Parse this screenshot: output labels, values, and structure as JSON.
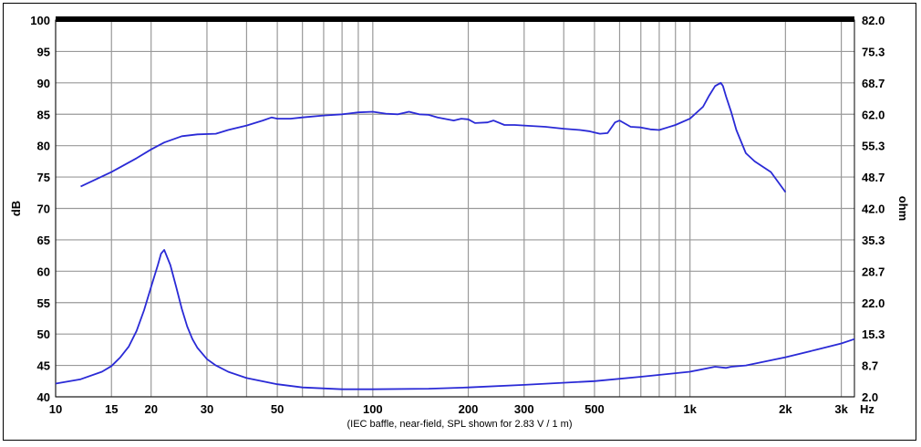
{
  "chart_data": {
    "type": "line",
    "x_scale": "log",
    "xlim": [
      10,
      3300
    ],
    "ylim_left": [
      40,
      100
    ],
    "ylim_right": [
      2.0,
      82.0
    ],
    "ylabel_left": "dB",
    "ylabel_right": "ohm",
    "x_unit": "Hz",
    "note": "(IEC baffle, near-field, SPL shown for 2.83 V / 1 m)",
    "grid": true,
    "x_ticks": [
      {
        "v": 10,
        "label": "10"
      },
      {
        "v": 15,
        "label": "15"
      },
      {
        "v": 20,
        "label": "20"
      },
      {
        "v": 30,
        "label": "30"
      },
      {
        "v": 50,
        "label": "50"
      },
      {
        "v": 100,
        "label": "100"
      },
      {
        "v": 200,
        "label": "200"
      },
      {
        "v": 300,
        "label": "300"
      },
      {
        "v": 500,
        "label": "500"
      },
      {
        "v": 1000,
        "label": "1k"
      },
      {
        "v": 2000,
        "label": "2k"
      },
      {
        "v": 3000,
        "label": "3k"
      }
    ],
    "x_minor": [
      40,
      60,
      70,
      80,
      90,
      400,
      600,
      700,
      800,
      900
    ],
    "y_ticks_left": [
      100,
      95,
      90,
      85,
      80,
      75,
      70,
      65,
      60,
      55,
      50,
      45,
      40
    ],
    "y_ticks_right": [
      "82.0",
      "75.3",
      "68.7",
      "62.0",
      "55.3",
      "48.7",
      "42.0",
      "35.3",
      "28.7",
      "22.0",
      "15.3",
      "8.7",
      "2.0"
    ],
    "series": [
      {
        "color": "#2a2ad6",
        "axis": "left",
        "x": [
          12,
          15,
          18,
          20,
          22,
          25,
          28,
          32,
          35,
          40,
          45,
          48,
          50,
          55,
          60,
          70,
          80,
          90,
          100,
          110,
          120,
          130,
          140,
          150,
          160,
          180,
          190,
          200,
          210,
          230,
          240,
          260,
          280,
          300,
          350,
          400,
          450,
          480,
          500,
          520,
          550,
          580,
          600,
          650,
          700,
          750,
          800,
          850,
          900,
          1000,
          1100,
          1150,
          1200,
          1250,
          1270,
          1300,
          1350,
          1400,
          1500,
          1600,
          1800,
          2000
        ],
        "y": [
          73.5,
          75.8,
          78,
          79.4,
          80.5,
          81.5,
          81.8,
          81.9,
          82.5,
          83.2,
          84,
          84.5,
          84.3,
          84.3,
          84.5,
          84.8,
          85,
          85.3,
          85.4,
          85.1,
          85.0,
          85.4,
          85.0,
          84.9,
          84.5,
          84.0,
          84.3,
          84.2,
          83.6,
          83.7,
          84.0,
          83.3,
          83.3,
          83.2,
          83.0,
          82.7,
          82.5,
          82.3,
          82.1,
          81.9,
          82.0,
          83.7,
          84.0,
          83.0,
          82.9,
          82.6,
          82.5,
          82.9,
          83.3,
          84.3,
          86.2,
          88,
          89.5,
          90.0,
          89.5,
          87.8,
          85.3,
          82.5,
          78.8,
          77.5,
          75.8,
          72.6
        ]
      },
      {
        "color": "#2a2ad6",
        "axis": "left",
        "x": [
          10,
          12,
          14,
          15,
          16,
          17,
          18,
          19,
          20,
          21,
          21.5,
          22,
          23,
          24,
          25,
          26,
          27,
          28,
          30,
          32,
          35,
          40,
          50,
          60,
          80,
          100,
          150,
          200,
          300,
          500,
          700,
          1000,
          1200,
          1300,
          1350,
          1500,
          2000,
          2500,
          3000,
          3300
        ],
        "y": [
          42.1,
          42.8,
          44,
          44.9,
          46.3,
          48,
          50.5,
          53.8,
          57.5,
          61,
          62.8,
          63.4,
          61,
          57.5,
          54,
          51.2,
          49.2,
          47.8,
          46,
          45,
          44,
          43,
          42,
          41.5,
          41.2,
          41.2,
          41.3,
          41.5,
          41.9,
          42.5,
          43.2,
          44,
          44.8,
          44.6,
          44.8,
          45,
          46.3,
          47.5,
          48.5,
          49.2
        ]
      }
    ]
  }
}
